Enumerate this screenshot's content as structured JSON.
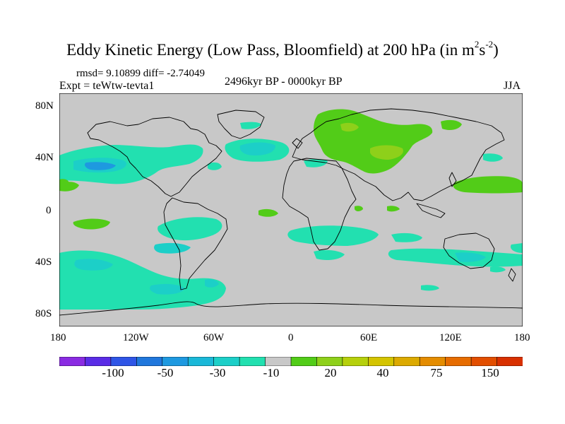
{
  "title": {
    "main": "Eddy Kinetic Energy (Low Pass, Bloomfield) at 200 hPa (in m",
    "sup1": "2",
    "mid": "s",
    "sup2": "-2",
    "close": ")"
  },
  "stats": "rmsd= 9.10899 diff= -2.74049",
  "experiment": "Expt = teWtw-tevta1",
  "period": "2496kyr BP - 0000kyr BP",
  "season": "JJA",
  "axes": {
    "y_ticks": [
      "80N",
      "40N",
      "0",
      "40S",
      "80S"
    ],
    "x_ticks": [
      "180",
      "120W",
      "60W",
      "0",
      "60E",
      "120E",
      "180"
    ]
  },
  "colorbar": {
    "colors": [
      "#8a2be2",
      "#5a2ce6",
      "#2f55e6",
      "#2077dc",
      "#1e99e0",
      "#1ab8d8",
      "#1ccfc8",
      "#22e0b0",
      "#c8c8c8",
      "#52cc18",
      "#8ed01a",
      "#b6d00c",
      "#d4c400",
      "#dcaa00",
      "#e48c00",
      "#e66c00",
      "#e24e00",
      "#d83000"
    ],
    "labels": [
      "-100",
      "-50",
      "-30",
      "-10",
      "20",
      "40",
      "75",
      "150"
    ]
  },
  "colors": {
    "land_outline": "#000000",
    "background_field": "#c8c8c8",
    "cyan": "#22e0b0",
    "blue": "#1ccfc8",
    "deep_blue": "#1e99e0",
    "green": "#52cc18",
    "lime": "#8ed01a"
  }
}
